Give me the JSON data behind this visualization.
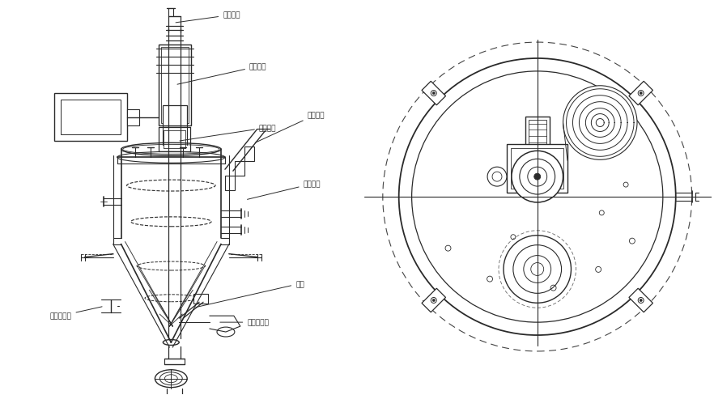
{
  "bg_color": "#ffffff",
  "line_color": "#2a2a2a",
  "fig_width": 8.82,
  "fig_height": 4.89,
  "dpi": 100,
  "labels": {
    "rotate_joint": "旋转接头",
    "drive_structure": "传动结构",
    "vacuum_backblow": "真空反吹",
    "mech_seal": "机械密封",
    "mix_agitate": "混合搅拌",
    "air_hammer": "气锤",
    "temp_transmitter": "料温变送器",
    "vacuum_sampler": "真空取样器"
  }
}
